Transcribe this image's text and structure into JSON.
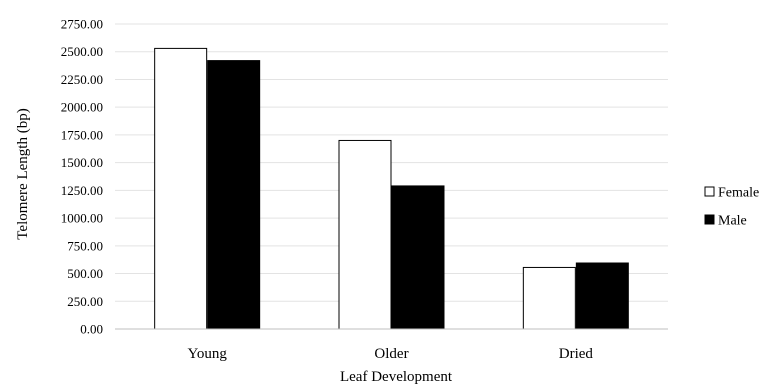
{
  "chart_data": {
    "type": "bar",
    "title": "",
    "xlabel": "Leaf Development",
    "ylabel": "Telomere Length (bp)",
    "categories": [
      "Young",
      "Older",
      "Dried"
    ],
    "series": [
      {
        "name": "Female",
        "values": [
          2530,
          1700,
          555
        ],
        "color": "#ffffff"
      },
      {
        "name": "Male",
        "values": [
          2420,
          1290,
          595
        ],
        "color": "#000000"
      }
    ],
    "ylim": [
      0,
      2750
    ],
    "yticks": [
      "0.00",
      "250.00",
      "500.00",
      "750.00",
      "1000.00",
      "1250.00",
      "1500.00",
      "1750.00",
      "2000.00",
      "2250.00",
      "2500.00",
      "2750.00"
    ],
    "grid": true,
    "legend_position": "right"
  }
}
